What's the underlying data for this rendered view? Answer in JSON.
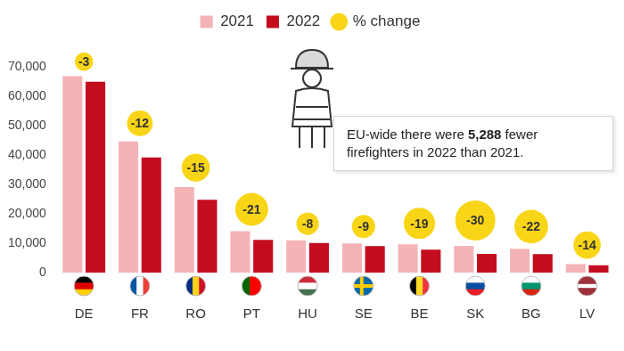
{
  "chart_data": {
    "type": "bar",
    "categories": [
      "DE",
      "FR",
      "RO",
      "PT",
      "HU",
      "SE",
      "BE",
      "SK",
      "BG",
      "LV"
    ],
    "series": [
      {
        "name": "2021",
        "color": "#f4b4b7",
        "values": [
          66800,
          44600,
          29100,
          14100,
          11000,
          9900,
          9600,
          9100,
          8100,
          2900
        ]
      },
      {
        "name": "2022",
        "color": "#c30d1f",
        "values": [
          64900,
          39200,
          24800,
          11100,
          10100,
          9000,
          7800,
          6400,
          6300,
          2500
        ]
      }
    ],
    "change": {
      "name": "% change",
      "color": "#f9d517",
      "values": [
        -3,
        -12,
        -15,
        -21,
        -8,
        -9,
        -19,
        -30,
        -22,
        -14
      ]
    },
    "annotation": "EU-wide there were 5,288 fewer firefighters in 2022 than 2021.",
    "ylim": [
      0,
      70000
    ],
    "yticks": [
      0,
      {
        "value": 10000,
        "label": "10,000"
      },
      {
        "value": 20000,
        "label": "20,000"
      },
      {
        "value": 30000,
        "label": "30,000"
      },
      {
        "value": 40000,
        "label": "40,000"
      },
      {
        "value": 50000,
        "label": "50,000"
      },
      {
        "value": 60000,
        "label": "60,000"
      },
      {
        "value": 70000,
        "label": "70,000"
      }
    ],
    "grid": false,
    "legend": "top"
  }
}
